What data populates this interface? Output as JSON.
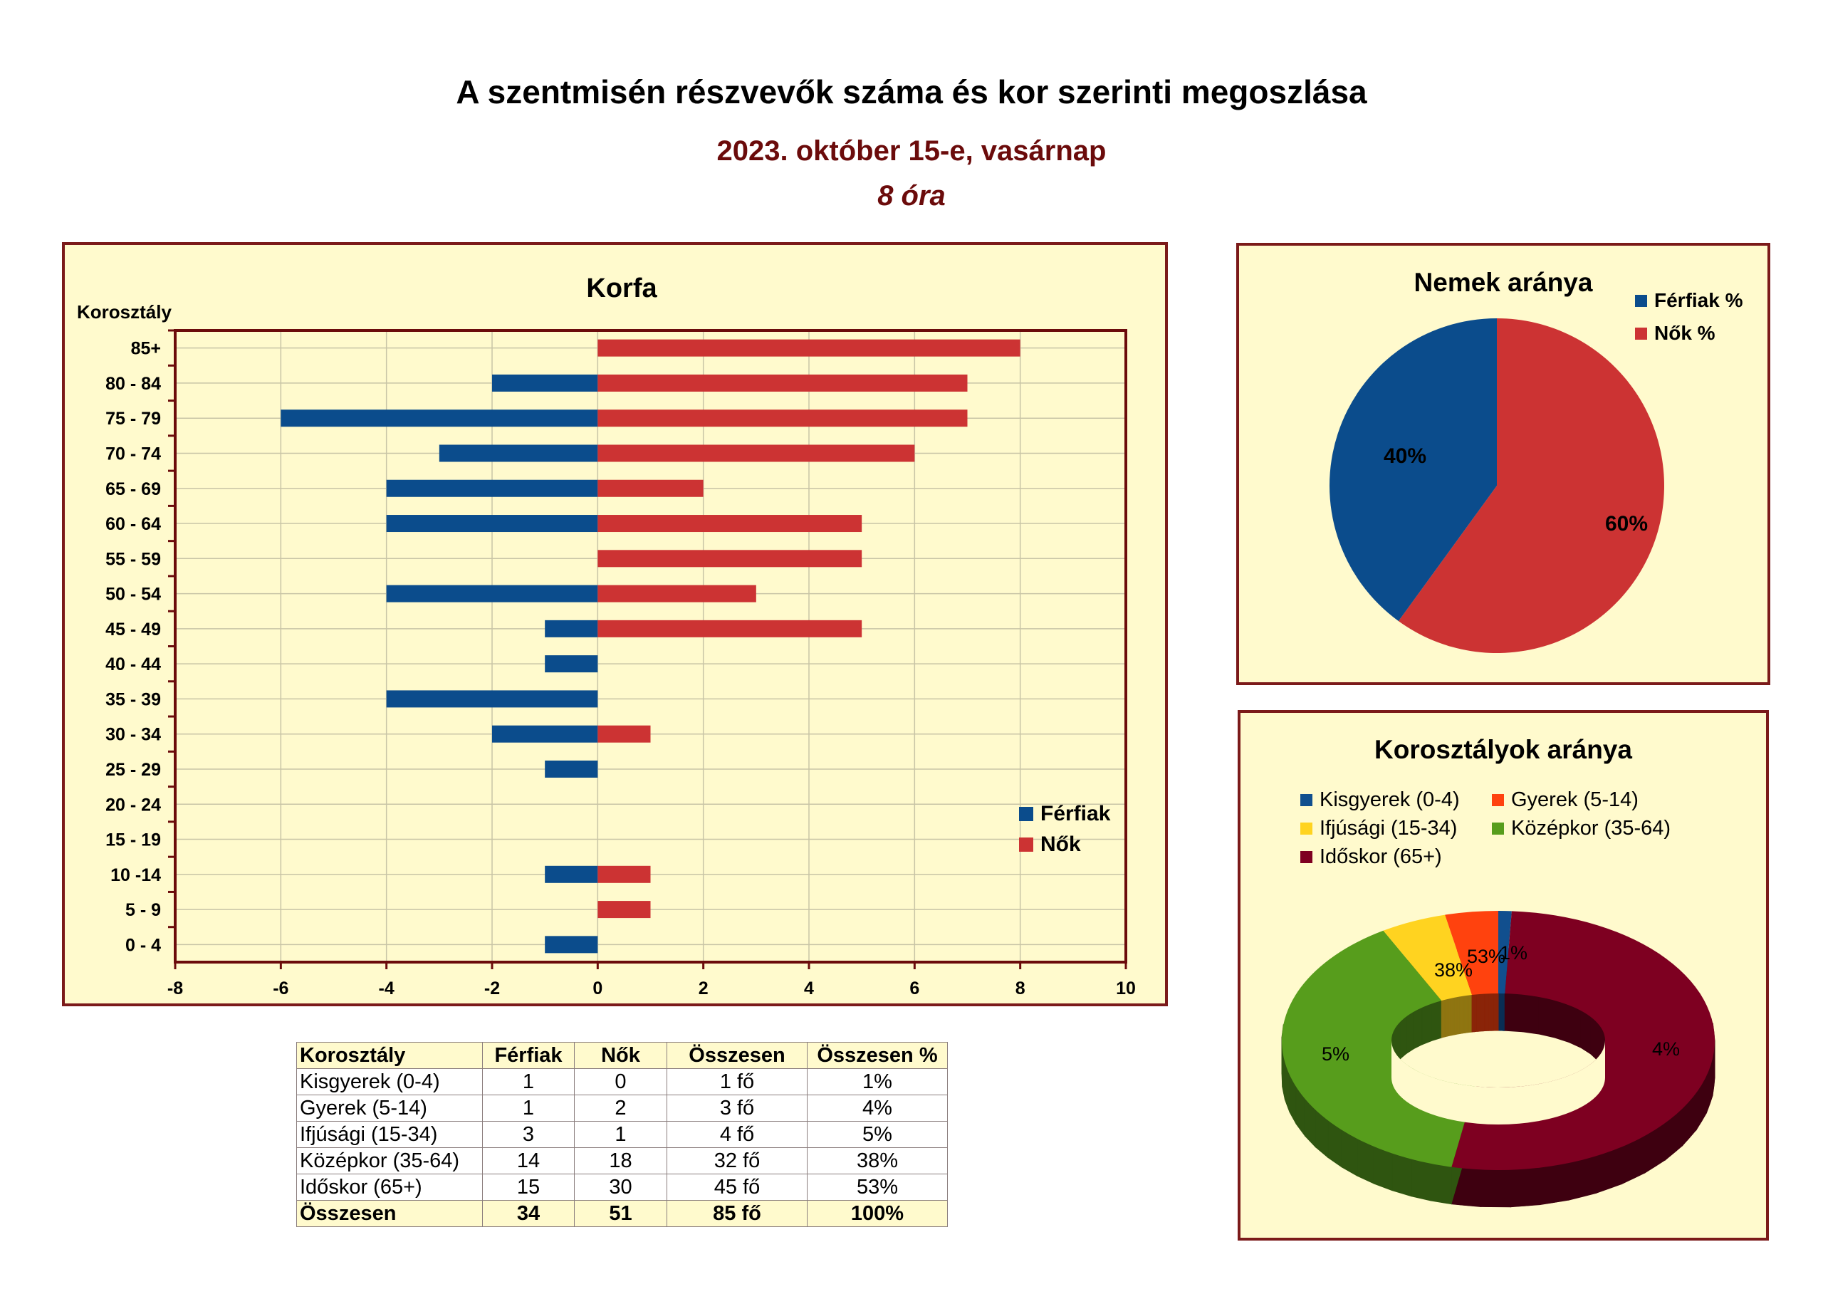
{
  "header": {
    "title": "A szentmisén részvevők száma és kor szerinti megoszlása",
    "subtitle": "2023. október 15-e, vasárnap",
    "time": "8 óra"
  },
  "colors": {
    "men": "#0b4c8c",
    "women": "#cc3333",
    "panel_bg": "#fffacd",
    "panel_border": "#7b1a1a",
    "title_dark_red": "#6b0b0b",
    "kisgyerek": "#114f8e",
    "gyerek": "#ff420e",
    "ifjusagi": "#ffd320",
    "kozepkor": "#579d1c",
    "idoskor": "#7e0021"
  },
  "chart_data": [
    {
      "type": "bar",
      "orientation": "horizontal",
      "title": "Korfa",
      "ylabel": "Korosztály",
      "categories": [
        "85+",
        "80 - 84",
        "75 - 79",
        "70 - 74",
        "65 - 69",
        "60 - 64",
        "55 - 59",
        "50 - 54",
        "45 - 49",
        "40 - 44",
        "35 - 39",
        "30 - 34",
        "25 - 29",
        "20 - 24",
        "15 - 19",
        "10 -14",
        "5 - 9",
        "0 - 4"
      ],
      "series": [
        {
          "name": "Férfiak",
          "color": "#0b4c8c",
          "values": [
            0,
            -2,
            -6,
            -3,
            -4,
            -4,
            0,
            -4,
            -1,
            -1,
            -4,
            -2,
            -1,
            0,
            0,
            -1,
            0,
            -1
          ]
        },
        {
          "name": "Nők",
          "color": "#cc3333",
          "values": [
            8,
            7,
            7,
            6,
            2,
            5,
            5,
            3,
            5,
            0,
            0,
            1,
            0,
            0,
            0,
            1,
            1,
            0
          ]
        }
      ],
      "xlim": [
        -8,
        10
      ],
      "xticks": [
        "-8",
        "-6",
        "-4",
        "-2",
        "0",
        "2",
        "4",
        "6",
        "8",
        "10"
      ],
      "grid": true,
      "legend": "right"
    },
    {
      "type": "pie",
      "title": "Nemek aránya",
      "labels": [
        "Férfiak %",
        "Nők %"
      ],
      "values": [
        40,
        60
      ],
      "value_labels": [
        "40%",
        "60%"
      ],
      "legend": "top-right"
    },
    {
      "type": "pie",
      "variant": "donut-3d",
      "title": "Korosztályok aránya",
      "labels": [
        "Kisgyerek (0-4)",
        "Gyerek (5-14)",
        "Ifjúsági (15-34)",
        "Középkor (35-64)",
        "Időskor (65+)"
      ],
      "values": [
        1,
        4,
        5,
        38,
        53
      ],
      "value_labels": [
        "1%",
        "4%",
        "5%",
        "38%",
        "53%"
      ],
      "legend": "top"
    }
  ],
  "table": {
    "headers": [
      "Korosztály",
      "Férfiak",
      "Nők",
      "Összesen",
      "Összesen %"
    ],
    "rows": [
      [
        "Kisgyerek (0-4)",
        "1",
        "0",
        "1 fő",
        "1%"
      ],
      [
        "Gyerek (5-14)",
        "1",
        "2",
        "3 fő",
        "4%"
      ],
      [
        "Ifjúsági (15-34)",
        "3",
        "1",
        "4 fő",
        "5%"
      ],
      [
        "Középkor (35-64)",
        "14",
        "18",
        "32 fő",
        "38%"
      ],
      [
        "Időskor (65+)",
        "15",
        "30",
        "45 fő",
        "53%"
      ]
    ],
    "total": [
      "Összesen",
      "34",
      "51",
      "85 fő",
      "100%"
    ]
  }
}
